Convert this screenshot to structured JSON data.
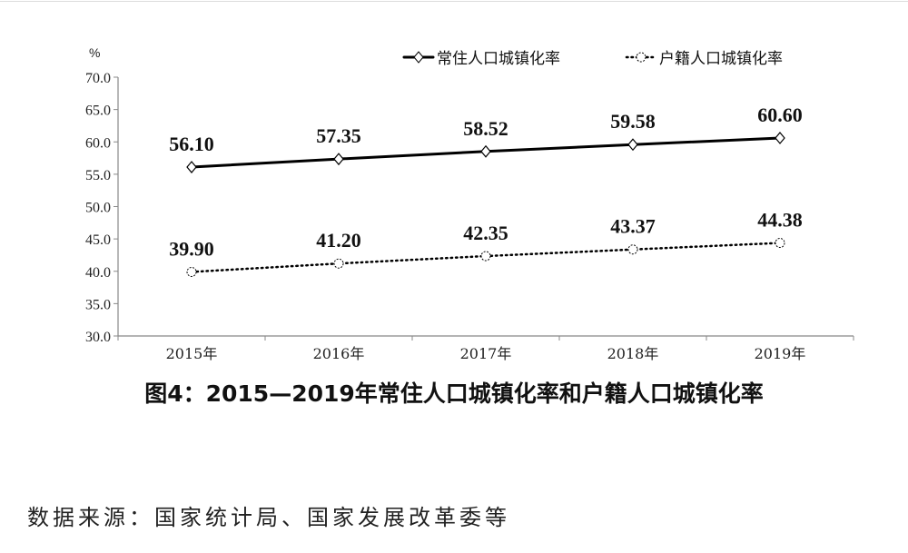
{
  "chart_data": {
    "type": "line",
    "title": "图4：2015—2019年常住人口城镇化率和户籍人口城镇化率",
    "ylabel": "%",
    "xlabel": "",
    "categories": [
      "2015年",
      "2016年",
      "2017年",
      "2018年",
      "2019年"
    ],
    "ylim": [
      30.0,
      70.0
    ],
    "yticks": [
      "30.0",
      "35.0",
      "40.0",
      "45.0",
      "50.0",
      "55.0",
      "60.0",
      "65.0",
      "70.0"
    ],
    "grid": false,
    "legend_position": "top-right",
    "series": [
      {
        "name": "常住人口城镇化率",
        "values": [
          56.1,
          57.35,
          58.52,
          59.58,
          60.6
        ],
        "labels": [
          "56.10",
          "57.35",
          "58.52",
          "59.58",
          "60.60"
        ],
        "style": "solid",
        "marker": "diamond",
        "color": "#000000"
      },
      {
        "name": "户籍人口城镇化率",
        "values": [
          39.9,
          41.2,
          42.35,
          43.37,
          44.38
        ],
        "labels": [
          "39.90",
          "41.20",
          "42.35",
          "43.37",
          "44.38"
        ],
        "style": "dotted",
        "marker": "circle",
        "color": "#000000"
      }
    ]
  },
  "source": "数据来源：国家统计局、国家发展改革委等"
}
